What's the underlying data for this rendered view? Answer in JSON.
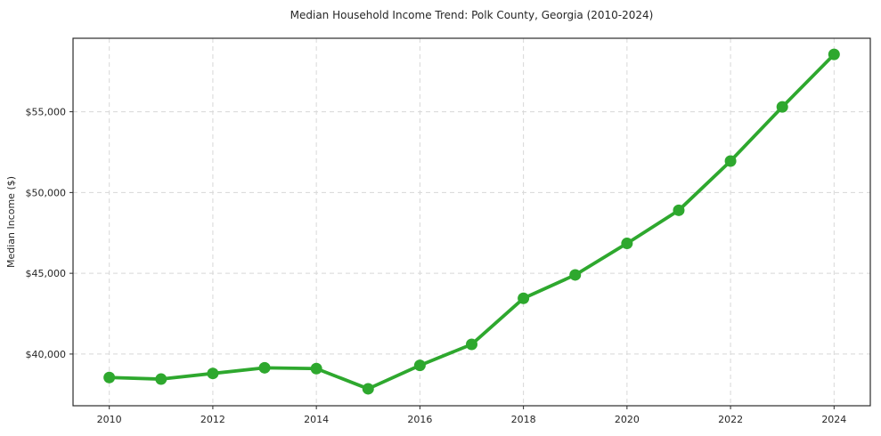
{
  "title": "Median Household Income Trend: Polk County, Georgia (2010-2024)",
  "chart_data": {
    "type": "line",
    "title": "Median Household Income Trend: Polk County, Georgia (2010-2024)",
    "xlabel": "",
    "ylabel": "Median Income ($)",
    "x": [
      2010,
      2011,
      2012,
      2013,
      2014,
      2015,
      2016,
      2017,
      2018,
      2019,
      2020,
      2021,
      2022,
      2023,
      2024
    ],
    "series": [
      {
        "name": "Median Household Income",
        "values": [
          38550,
          38450,
          38800,
          39150,
          39100,
          37850,
          39300,
          40600,
          43450,
          44900,
          46850,
          48900,
          51950,
          55300,
          58550
        ]
      }
    ],
    "xticks": {
      "values": [
        2010,
        2012,
        2014,
        2016,
        2018,
        2020,
        2022,
        2024
      ],
      "labels": [
        "2010",
        "2012",
        "2014",
        "2016",
        "2018",
        "2020",
        "2022",
        "2024"
      ]
    },
    "yticks": {
      "values": [
        40000,
        45000,
        50000,
        55000
      ],
      "labels": [
        "$40,000",
        "$45,000",
        "$50,000",
        "$55,000"
      ]
    },
    "xlim": [
      2009.3,
      2024.7
    ],
    "ylim": [
      36800,
      59550
    ],
    "grid": true,
    "grid_style": "dashed",
    "legend": false,
    "colors": {
      "line": "#2ea82e",
      "marker": "#2ea82e",
      "gridline": "#d8d8d8",
      "spine": "#2b2b2b",
      "background": "#ffffff",
      "text": "#262626"
    },
    "marker": "circle",
    "marker_radius": 6.5,
    "line_width": 3.8
  }
}
